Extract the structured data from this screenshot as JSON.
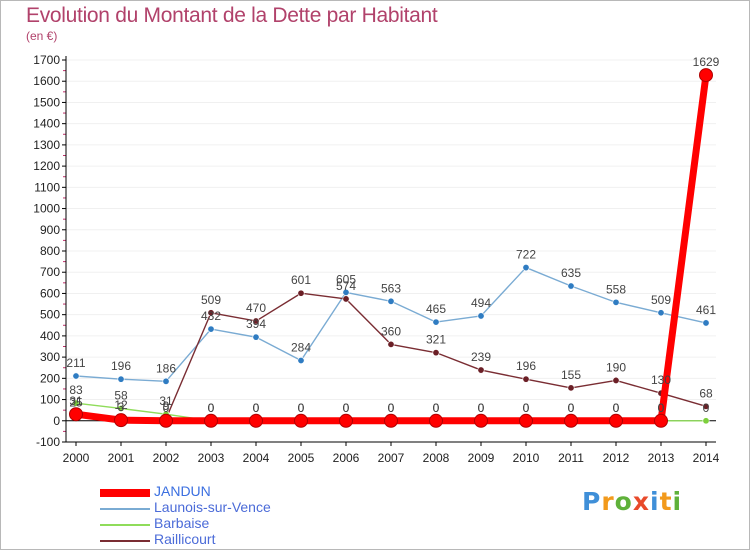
{
  "header": {
    "title": "Evolution du Montant de la Dette par Habitant",
    "unit": "(en €)"
  },
  "logo": {
    "text": "Proxiti",
    "letters": [
      "P",
      "r",
      "o",
      "x",
      "i",
      "t",
      "i"
    ]
  },
  "colors": {
    "title": "#b1426b",
    "axis": "#000000",
    "grid": "#f0f0f0",
    "data_label": "#444444"
  },
  "chart_data": {
    "type": "line",
    "title": "Evolution du Montant de la Dette par Habitant",
    "subtitle": "(en €)",
    "xlabel": "",
    "ylabel": "",
    "x": [
      "2000",
      "2001",
      "2002",
      "2003",
      "2004",
      "2005",
      "2006",
      "2007",
      "2008",
      "2009",
      "2010",
      "2011",
      "2012",
      "2013",
      "2014"
    ],
    "ylim": [
      -100,
      1700
    ],
    "yticks": [
      -100,
      0,
      100,
      200,
      300,
      400,
      500,
      600,
      700,
      800,
      900,
      1000,
      1100,
      1200,
      1300,
      1400,
      1500,
      1600,
      1700
    ],
    "legend_position": "bottom-left",
    "series": [
      {
        "name": "JANDUN",
        "color": "#ff0000",
        "marker_color": "#ff0000",
        "emphasis": true,
        "values": [
          31,
          3,
          0,
          0,
          0,
          0,
          0,
          0,
          0,
          0,
          0,
          0,
          0,
          0,
          1629
        ],
        "labels": [
          "31",
          "3",
          "0",
          "0",
          "0",
          "0",
          "0",
          "0",
          "0",
          "0",
          "0",
          "0",
          "0",
          "0",
          "1629"
        ]
      },
      {
        "name": "Launois-sur-Vence",
        "color": "#7aabd3",
        "marker_color": "#2f7cc2",
        "emphasis": false,
        "values": [
          211,
          196,
          186,
          432,
          394,
          284,
          605,
          563,
          465,
          494,
          722,
          635,
          558,
          509,
          461
        ],
        "labels": [
          "211",
          "196",
          "186",
          "432",
          "394",
          "284",
          "605",
          "563",
          "465",
          "494",
          "722",
          "635",
          "558",
          "509",
          "461"
        ]
      },
      {
        "name": "Barbaise",
        "color": "#8fdc5a",
        "marker_color": "#7ccf3c",
        "emphasis": false,
        "values": [
          83,
          58,
          31,
          0,
          0,
          0,
          0,
          0,
          0,
          0,
          0,
          0,
          0,
          0,
          0
        ],
        "labels": [
          "83",
          "58",
          "31",
          "0",
          "0",
          "0",
          "0",
          "0",
          "0",
          "0",
          "0",
          "0",
          "0",
          "0",
          "0"
        ]
      },
      {
        "name": "Raillicourt",
        "color": "#7a2d33",
        "marker_color": "#6b1f26",
        "emphasis": false,
        "values": [
          25,
          12,
          9,
          509,
          470,
          601,
          574,
          360,
          321,
          239,
          196,
          155,
          190,
          130,
          68
        ],
        "labels": [
          "25",
          "12",
          "9",
          "509",
          "470",
          "601",
          "574",
          "360",
          "321",
          "239",
          "196",
          "155",
          "190",
          "130",
          "68"
        ]
      }
    ]
  }
}
